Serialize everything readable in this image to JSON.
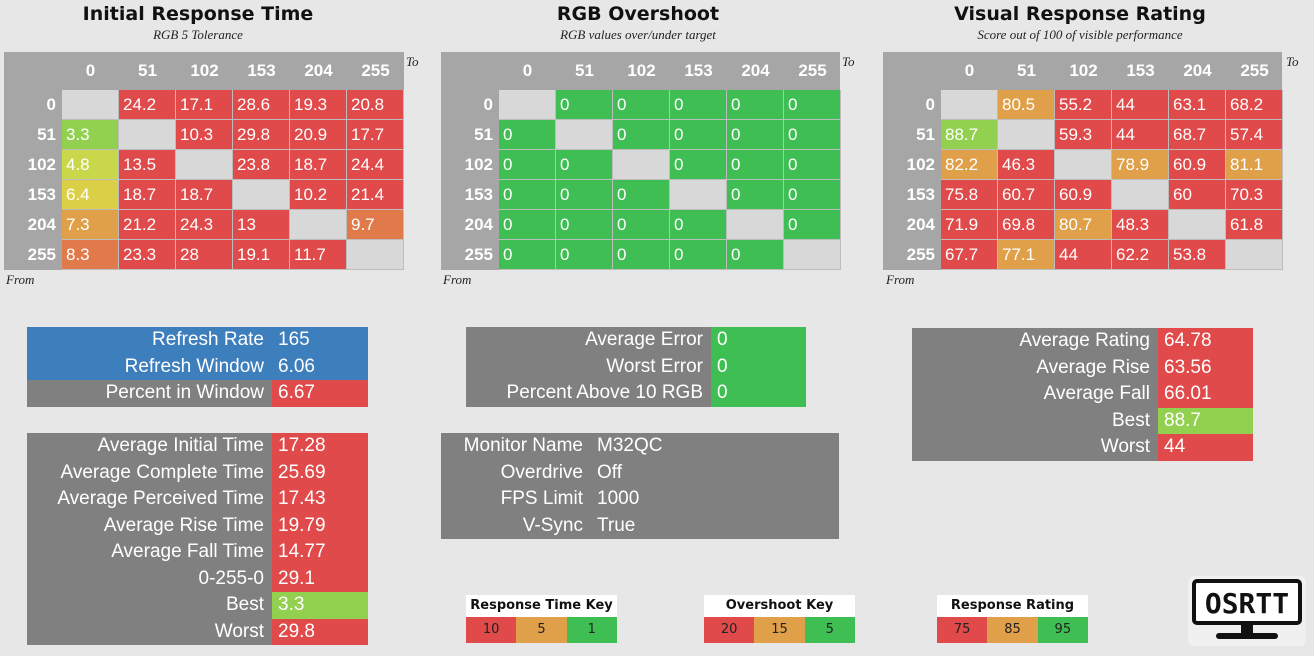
{
  "colors": {
    "red": "#e04a4a",
    "green": "#3fbf53",
    "lightgreen": "#92d050",
    "yellowgreen": "#c9d84a",
    "yellow": "#dccf48",
    "orange": "#e0a04a",
    "orangered": "#e07a4a",
    "gray": "#808080",
    "header_gray": "#a6a6a6",
    "blue": "#3d7ebd"
  },
  "initial": {
    "title": "Initial Response Time",
    "subtitle": "RGB 5 Tolerance",
    "to": "To",
    "from": "From",
    "headers": [
      "0",
      "51",
      "102",
      "153",
      "204",
      "255"
    ],
    "rows": [
      [
        "",
        "24.2",
        "17.1",
        "28.6",
        "19.3",
        "20.8"
      ],
      [
        "3.3",
        "",
        "10.3",
        "29.8",
        "20.9",
        "17.7"
      ],
      [
        "4.8",
        "13.5",
        "",
        "23.8",
        "18.7",
        "24.4"
      ],
      [
        "6.4",
        "18.7",
        "18.7",
        "",
        "10.2",
        "21.4"
      ],
      [
        "7.3",
        "21.2",
        "24.3",
        "13",
        "",
        "9.7"
      ],
      [
        "8.3",
        "23.3",
        "28",
        "19.1",
        "11.7",
        ""
      ]
    ],
    "colors": [
      [
        "diag",
        "red",
        "red",
        "red",
        "red",
        "red"
      ],
      [
        "lightgreen",
        "diag",
        "red",
        "red",
        "red",
        "red"
      ],
      [
        "yellowgreen",
        "red",
        "diag",
        "red",
        "red",
        "red"
      ],
      [
        "yellow",
        "red",
        "red",
        "diag",
        "red",
        "red"
      ],
      [
        "orange",
        "red",
        "red",
        "red",
        "diag",
        "orangered"
      ],
      [
        "orangered",
        "red",
        "red",
        "red",
        "red",
        "diag"
      ]
    ]
  },
  "overshoot": {
    "title": "RGB Overshoot",
    "subtitle": "RGB values over/under target",
    "to": "To",
    "from": "From",
    "headers": [
      "0",
      "51",
      "102",
      "153",
      "204",
      "255"
    ],
    "rows": [
      [
        "",
        "0",
        "0",
        "0",
        "0",
        "0"
      ],
      [
        "0",
        "",
        "0",
        "0",
        "0",
        "0"
      ],
      [
        "0",
        "0",
        "",
        "0",
        "0",
        "0"
      ],
      [
        "0",
        "0",
        "0",
        "",
        "0",
        "0"
      ],
      [
        "0",
        "0",
        "0",
        "0",
        "",
        "0"
      ],
      [
        "0",
        "0",
        "0",
        "0",
        "0",
        ""
      ]
    ]
  },
  "visual": {
    "title": "Visual Response Rating",
    "subtitle": "Score out of 100 of visible performance",
    "to": "To",
    "from": "From",
    "headers": [
      "0",
      "51",
      "102",
      "153",
      "204",
      "255"
    ],
    "rows": [
      [
        "",
        "80.5",
        "55.2",
        "44",
        "63.1",
        "68.2"
      ],
      [
        "88.7",
        "",
        "59.3",
        "44",
        "68.7",
        "57.4"
      ],
      [
        "82.2",
        "46.3",
        "",
        "78.9",
        "60.9",
        "81.1"
      ],
      [
        "75.8",
        "60.7",
        "60.9",
        "",
        "60",
        "70.3"
      ],
      [
        "71.9",
        "69.8",
        "80.7",
        "48.3",
        "",
        "61.8"
      ],
      [
        "67.7",
        "77.1",
        "44",
        "62.2",
        "53.8",
        ""
      ]
    ],
    "colors": [
      [
        "diag",
        "orange",
        "red",
        "red",
        "red",
        "red"
      ],
      [
        "lightgreen",
        "diag",
        "red",
        "red",
        "red",
        "red"
      ],
      [
        "orange",
        "red",
        "diag",
        "orange",
        "red",
        "orange"
      ],
      [
        "red",
        "red",
        "red",
        "diag",
        "red",
        "red"
      ],
      [
        "red",
        "red",
        "orange",
        "red",
        "diag",
        "red"
      ],
      [
        "red",
        "orange",
        "red",
        "red",
        "red",
        "diag"
      ]
    ]
  },
  "refresh": {
    "rows": [
      {
        "label": "Refresh Rate",
        "value": "165",
        "lc": "blue",
        "vc": "blue"
      },
      {
        "label": "Refresh Window",
        "value": "6.06",
        "lc": "blue",
        "vc": "blue"
      },
      {
        "label": "Percent in Window",
        "value": "6.67",
        "lc": "gray",
        "vc": "red"
      }
    ]
  },
  "times": {
    "rows": [
      {
        "label": "Average Initial Time",
        "value": "17.28",
        "vc": "red"
      },
      {
        "label": "Average Complete Time",
        "value": "25.69",
        "vc": "red"
      },
      {
        "label": "Average Perceived Time",
        "value": "17.43",
        "vc": "red"
      },
      {
        "label": "Average Rise Time",
        "value": "19.79",
        "vc": "red"
      },
      {
        "label": "Average Fall Time",
        "value": "14.77",
        "vc": "red"
      },
      {
        "label": "0-255-0",
        "value": "29.1",
        "vc": "red"
      },
      {
        "label": "Best",
        "value": "3.3",
        "vc": "lightgreen"
      },
      {
        "label": "Worst",
        "value": "29.8",
        "vc": "red"
      }
    ]
  },
  "errors": {
    "rows": [
      {
        "label": "Average Error",
        "value": "0",
        "vc": "green"
      },
      {
        "label": "Worst Error",
        "value": "0",
        "vc": "green"
      },
      {
        "label": "Percent Above 10 RGB",
        "value": "0",
        "vc": "green"
      }
    ]
  },
  "monitor": {
    "rows": [
      {
        "label": "Monitor Name",
        "value": "M32QC",
        "vc": "gray"
      },
      {
        "label": "Overdrive",
        "value": "Off",
        "vc": "gray"
      },
      {
        "label": "FPS Limit",
        "value": "1000",
        "vc": "gray"
      },
      {
        "label": "V-Sync",
        "value": "True",
        "vc": "gray"
      }
    ]
  },
  "rating": {
    "rows": [
      {
        "label": "Average Rating",
        "value": "64.78",
        "vc": "red"
      },
      {
        "label": "Average Rise",
        "value": "63.56",
        "vc": "red"
      },
      {
        "label": "Average Fall",
        "value": "66.01",
        "vc": "red"
      },
      {
        "label": "Best",
        "value": "88.7",
        "vc": "lightgreen"
      },
      {
        "label": "Worst",
        "value": "44",
        "vc": "red"
      }
    ]
  },
  "keys": {
    "response": {
      "title": "Response Time Key",
      "items": [
        "10",
        "5",
        "1"
      ]
    },
    "overshoot": {
      "title": "Overshoot Key",
      "items": [
        "20",
        "15",
        "5"
      ]
    },
    "rating": {
      "title": "Response Rating Key",
      "items": [
        "75",
        "85",
        "95"
      ]
    },
    "colors": [
      "red",
      "orange",
      "green"
    ]
  },
  "logo": {
    "text": "OSRTT"
  }
}
